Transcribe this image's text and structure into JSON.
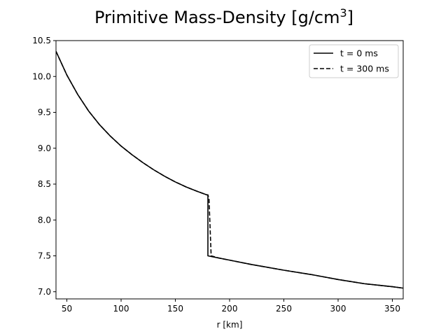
{
  "chart_data": {
    "type": "line",
    "title": "Primitive Mass-Density [g/cm",
    "title_superscript": "3",
    "title_suffix": "]",
    "xlabel": "r [km]",
    "ylabel": "",
    "xlim": [
      40,
      360
    ],
    "ylim": [
      6.9,
      10.5
    ],
    "xticks": [
      50,
      100,
      150,
      200,
      250,
      300,
      350
    ],
    "yticks": [
      7.0,
      7.5,
      8.0,
      8.5,
      9.0,
      9.5,
      10.0,
      10.5
    ],
    "ytick_labels": [
      "7.0",
      "7.5",
      "8.0",
      "8.5",
      "9.0",
      "9.5",
      "10.0",
      "10.5"
    ],
    "grid": false,
    "legend_position": "top-right",
    "line_color": "#000000",
    "series": [
      {
        "name": "t = 0 ms",
        "style": "solid",
        "x": [
          40,
          50,
          60,
          70,
          80,
          90,
          100,
          110,
          120,
          130,
          140,
          150,
          160,
          170,
          179,
          180,
          180,
          190,
          200,
          220,
          250,
          275,
          300,
          325,
          350,
          360
        ],
        "y": [
          10.35,
          10.02,
          9.75,
          9.52,
          9.33,
          9.17,
          9.03,
          8.91,
          8.8,
          8.7,
          8.61,
          8.53,
          8.46,
          8.4,
          8.35,
          8.35,
          7.5,
          7.47,
          7.44,
          7.38,
          7.3,
          7.24,
          7.17,
          7.11,
          7.07,
          7.05
        ]
      },
      {
        "name": "t = 300 ms",
        "style": "dashed",
        "x": [
          40,
          50,
          60,
          70,
          80,
          90,
          100,
          110,
          120,
          130,
          140,
          150,
          160,
          170,
          179,
          180,
          181,
          182,
          183,
          190,
          200,
          220,
          250,
          275,
          300,
          325,
          350,
          360
        ],
        "y": [
          10.35,
          10.02,
          9.75,
          9.52,
          9.33,
          9.17,
          9.03,
          8.91,
          8.8,
          8.7,
          8.61,
          8.53,
          8.46,
          8.4,
          8.35,
          8.35,
          8.3,
          7.9,
          7.5,
          7.47,
          7.44,
          7.38,
          7.3,
          7.24,
          7.17,
          7.11,
          7.07,
          7.05
        ]
      }
    ]
  }
}
